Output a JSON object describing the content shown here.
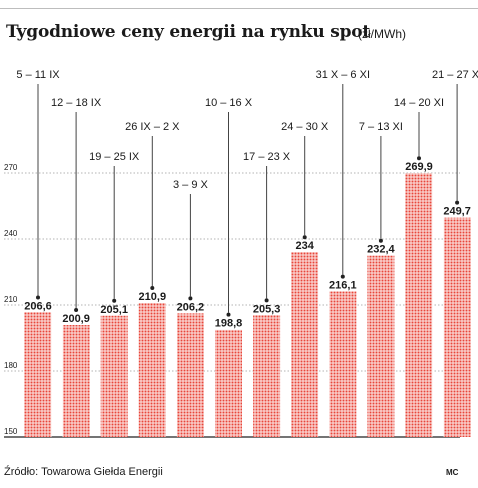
{
  "title": "Tygodniowe ceny energii na rynku spot",
  "unit": "(zł/MWh)",
  "source": "Źródło: Towarowa Giełda Energii",
  "credit": "MC",
  "colors": {
    "bar": "#e8463a",
    "bar_bg": "#fdecea",
    "text": "#1a1a1a",
    "grid": "#9a9a9a"
  },
  "chart_data": {
    "type": "bar",
    "categories": [
      "5 – 11 IX",
      "12 – 18 IX",
      "19 – 25 IX",
      "26 IX – 2 X",
      "3 – 9 X",
      "10 – 16 X",
      "17 – 23 X",
      "24 – 30 X",
      "31 X – 6 XI",
      "7 – 13 XI",
      "14 – 20 XI",
      "21 – 27 XI"
    ],
    "values": [
      206.6,
      200.9,
      205.1,
      210.9,
      206.2,
      198.8,
      205.3,
      234,
      216.1,
      232.4,
      269.9,
      249.7
    ],
    "value_labels": [
      "206,6",
      "200,9",
      "205,1",
      "210,9",
      "206,2",
      "198,8",
      "205,3",
      "234",
      "216,1",
      "232,4",
      "269,9",
      "249,7"
    ],
    "yticks": [
      150,
      180,
      210,
      240,
      270
    ],
    "ytick_labels": [
      "150",
      "180",
      "210",
      "240",
      "270"
    ],
    "ylim": [
      150,
      300
    ],
    "grid": true,
    "xlabel": "",
    "ylabel": ""
  }
}
